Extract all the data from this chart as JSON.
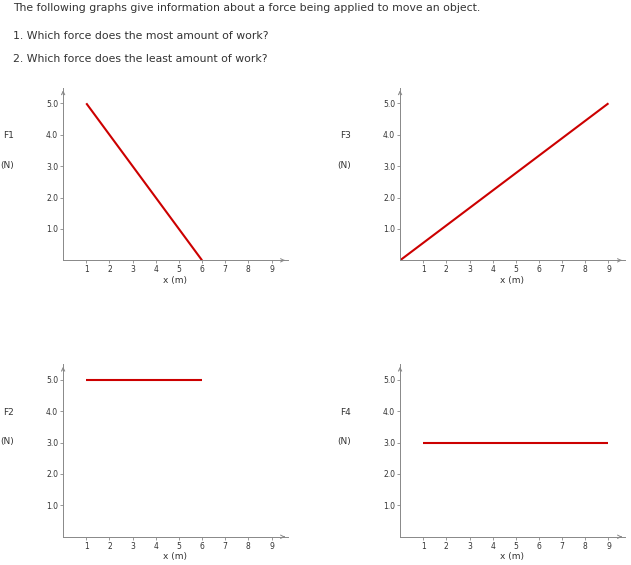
{
  "title_text": "The following graphs give information about a force being applied to move an object.",
  "q1": "1. Which force does the most amount of work?",
  "q2": "2. Which force does the least amount of work?",
  "line_color": "#cc0000",
  "axis_color": "#888888",
  "text_color": "#333333",
  "background_color": "#ffffff",
  "plots": [
    {
      "label_line1": "F1",
      "label_line2": "(N)",
      "xlabel": "x (m)",
      "ylim": [
        0,
        5.5
      ],
      "xlim": [
        0,
        9.7
      ],
      "yticks": [
        1.0,
        2.0,
        3.0,
        4.0,
        5.0
      ],
      "ytick_labels": [
        "1.0",
        "2.0",
        "3.0",
        "4.0",
        "5.0"
      ],
      "xticks": [
        1,
        2,
        3,
        4,
        5,
        6,
        7,
        8,
        9
      ],
      "x": [
        1,
        6
      ],
      "y": [
        5.0,
        0.0
      ]
    },
    {
      "label_line1": "F3",
      "label_line2": "(N)",
      "xlabel": "x (m)",
      "ylim": [
        0,
        5.5
      ],
      "xlim": [
        0,
        9.7
      ],
      "yticks": [
        1.0,
        2.0,
        3.0,
        4.0,
        5.0
      ],
      "ytick_labels": [
        "1.0",
        "2.0",
        "3.0",
        "4.0",
        "5.0"
      ],
      "xticks": [
        1,
        2,
        3,
        4,
        5,
        6,
        7,
        8,
        9
      ],
      "x": [
        0,
        9
      ],
      "y": [
        0.0,
        5.0
      ]
    },
    {
      "label_line1": "F2",
      "label_line2": "(N)",
      "xlabel": "x (m)",
      "ylim": [
        0,
        5.5
      ],
      "xlim": [
        0,
        9.7
      ],
      "yticks": [
        1.0,
        2.0,
        3.0,
        4.0,
        5.0
      ],
      "ytick_labels": [
        "1.0",
        "2.0",
        "3.0",
        "4.0",
        "5.0"
      ],
      "xticks": [
        1,
        2,
        3,
        4,
        5,
        6,
        7,
        8,
        9
      ],
      "x": [
        1,
        6
      ],
      "y": [
        5.0,
        5.0
      ]
    },
    {
      "label_line1": "F4",
      "label_line2": "(N)",
      "xlabel": "x (m)",
      "ylim": [
        0,
        5.5
      ],
      "xlim": [
        0,
        9.7
      ],
      "yticks": [
        1.0,
        2.0,
        3.0,
        4.0,
        5.0
      ],
      "ytick_labels": [
        "1.0",
        "2.0",
        "3.0",
        "4.0",
        "5.0"
      ],
      "xticks": [
        1,
        2,
        3,
        4,
        5,
        6,
        7,
        8,
        9
      ],
      "x": [
        1,
        9
      ],
      "y": [
        3.0,
        3.0
      ]
    }
  ]
}
